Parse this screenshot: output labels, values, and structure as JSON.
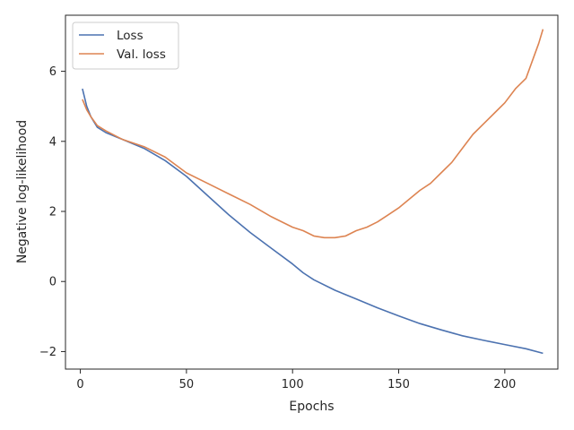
{
  "chart_data": {
    "type": "line",
    "title": "",
    "xlabel": "Epochs",
    "ylabel": "Negative log-likelihood",
    "xlim": [
      -7,
      225
    ],
    "ylim": [
      -2.5,
      7.6
    ],
    "xticks": [
      0,
      50,
      100,
      150,
      200
    ],
    "yticks": [
      -2,
      0,
      2,
      4,
      6
    ],
    "ytick_labels": [
      "−2",
      "0",
      "2",
      "4",
      "6"
    ],
    "grid": false,
    "legend": {
      "location": "top-left"
    },
    "series": [
      {
        "name": "Loss",
        "color": "#4c72b0",
        "points": [
          [
            1,
            5.5
          ],
          [
            3,
            5.0
          ],
          [
            5,
            4.7
          ],
          [
            8,
            4.4
          ],
          [
            12,
            4.25
          ],
          [
            20,
            4.05
          ],
          [
            30,
            3.8
          ],
          [
            40,
            3.45
          ],
          [
            50,
            3.0
          ],
          [
            60,
            2.45
          ],
          [
            70,
            1.9
          ],
          [
            80,
            1.4
          ],
          [
            90,
            0.95
          ],
          [
            100,
            0.5
          ],
          [
            105,
            0.25
          ],
          [
            110,
            0.05
          ],
          [
            120,
            -0.25
          ],
          [
            130,
            -0.5
          ],
          [
            140,
            -0.75
          ],
          [
            150,
            -0.98
          ],
          [
            160,
            -1.2
          ],
          [
            170,
            -1.38
          ],
          [
            180,
            -1.55
          ],
          [
            190,
            -1.68
          ],
          [
            200,
            -1.8
          ],
          [
            210,
            -1.92
          ],
          [
            218,
            -2.05
          ]
        ]
      },
      {
        "name": "Val. loss",
        "color": "#dd8452",
        "points": [
          [
            1,
            5.2
          ],
          [
            3,
            4.9
          ],
          [
            5,
            4.7
          ],
          [
            8,
            4.45
          ],
          [
            12,
            4.3
          ],
          [
            20,
            4.05
          ],
          [
            30,
            3.85
          ],
          [
            40,
            3.55
          ],
          [
            50,
            3.1
          ],
          [
            60,
            2.8
          ],
          [
            70,
            2.5
          ],
          [
            80,
            2.2
          ],
          [
            90,
            1.85
          ],
          [
            100,
            1.55
          ],
          [
            105,
            1.45
          ],
          [
            110,
            1.3
          ],
          [
            115,
            1.25
          ],
          [
            120,
            1.25
          ],
          [
            125,
            1.3
          ],
          [
            130,
            1.45
          ],
          [
            135,
            1.55
          ],
          [
            140,
            1.7
          ],
          [
            145,
            1.9
          ],
          [
            150,
            2.1
          ],
          [
            155,
            2.35
          ],
          [
            160,
            2.6
          ],
          [
            165,
            2.8
          ],
          [
            170,
            3.1
          ],
          [
            175,
            3.4
          ],
          [
            180,
            3.8
          ],
          [
            185,
            4.2
          ],
          [
            190,
            4.5
          ],
          [
            195,
            4.8
          ],
          [
            200,
            5.1
          ],
          [
            205,
            5.5
          ],
          [
            210,
            5.8
          ],
          [
            213,
            6.3
          ],
          [
            216,
            6.8
          ],
          [
            218,
            7.2
          ]
        ]
      }
    ]
  }
}
